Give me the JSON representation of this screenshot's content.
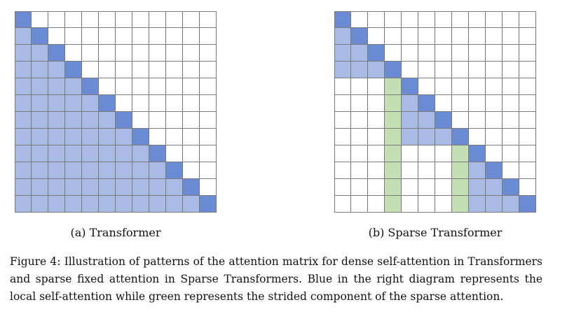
{
  "diagram": {
    "colors": {
      "diagonal": "#6a8bd3",
      "local": "#a9bbe5",
      "strided": "#c4dfb3",
      "empty": "#ffffff",
      "gridline": "#7a7a7a"
    },
    "grid_size": 12,
    "panels": [
      {
        "caption": "(a) Transformer",
        "pattern": "dense",
        "diagonal": true
      },
      {
        "caption": "(b) Sparse Transformer",
        "pattern": "sparse-fixed",
        "block_size": 4,
        "strided_columns": [
          3,
          7
        ],
        "diagonal": true
      }
    ]
  },
  "figure_caption": "Figure 4: Illustration of patterns of the attention matrix for dense self-attention in Transformers and sparse fixed attention in Sparse Transformers. Blue in the right diagram represents the local self-attention while green represents the strided component of the sparse attention."
}
